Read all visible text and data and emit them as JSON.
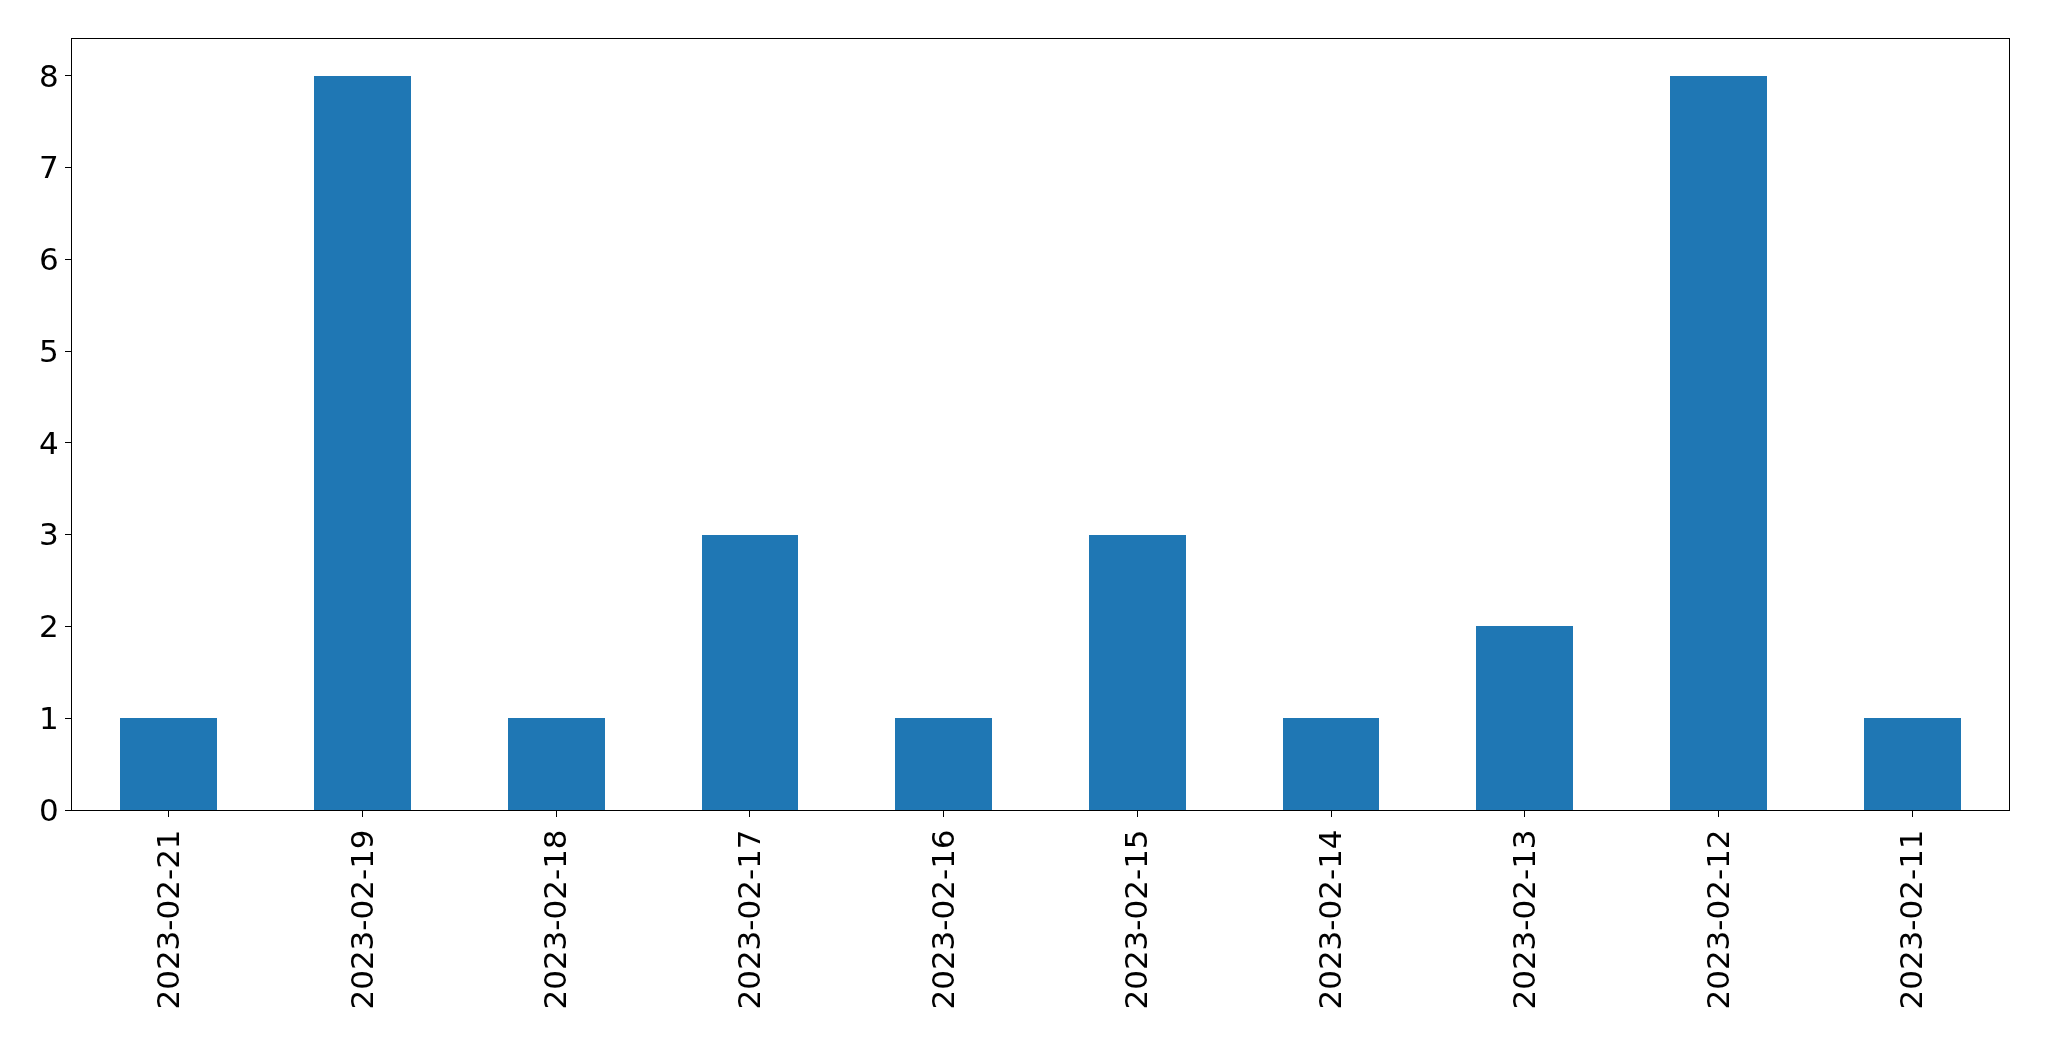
{
  "chart_data": {
    "type": "bar",
    "categories": [
      "2023-02-21",
      "2023-02-19",
      "2023-02-18",
      "2023-02-17",
      "2023-02-16",
      "2023-02-15",
      "2023-02-14",
      "2023-02-13",
      "2023-02-12",
      "2023-02-11"
    ],
    "values": [
      1,
      8,
      1,
      3,
      1,
      3,
      1,
      2,
      8,
      1
    ],
    "color": "#1f77b4",
    "ylim": [
      0,
      8.4
    ],
    "yticks": [
      0,
      1,
      2,
      3,
      4,
      5,
      6,
      7,
      8
    ]
  }
}
